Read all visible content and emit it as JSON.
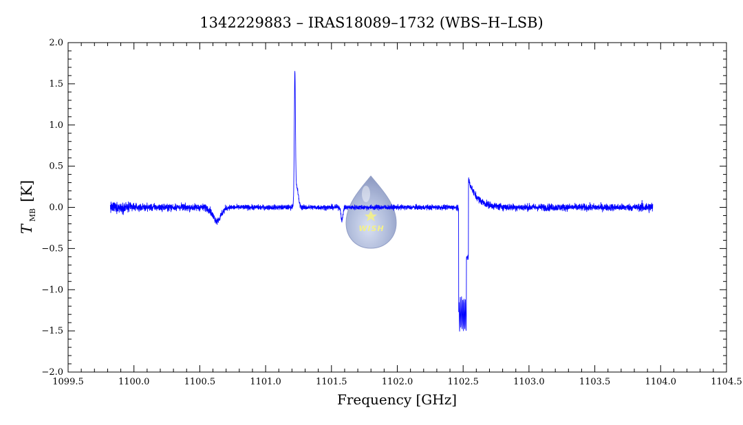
{
  "chart_data": {
    "type": "line",
    "title": "1342229883 – IRAS18089–1732 (WBS–H–LSB)",
    "xlabel": "Frequency [GHz]",
    "ylabel_main": "T",
    "ylabel_sub": "MB",
    "ylabel_unit": "[K]",
    "xlim": [
      1099.5,
      1104.5
    ],
    "ylim": [
      -2.0,
      2.0
    ],
    "x_major_ticks": [
      1099.5,
      1100.0,
      1100.5,
      1101.0,
      1101.5,
      1102.0,
      1102.5,
      1103.0,
      1103.5,
      1104.0,
      1104.5
    ],
    "x_tick_labels": [
      "1099.5",
      "1100.0",
      "1100.5",
      "1101.0",
      "1101.5",
      "1102.0",
      "1102.5",
      "1103.0",
      "1103.5",
      "1104.0",
      "1104.5"
    ],
    "y_major_ticks": [
      -2.0,
      -1.5,
      -1.0,
      -0.5,
      0.0,
      0.5,
      1.0,
      1.5,
      2.0
    ],
    "y_tick_labels": [
      "−2.0",
      "−1.5",
      "−1.0",
      "−0.5",
      "0.0",
      "0.5",
      "1.0",
      "1.5",
      "2.0"
    ],
    "grid": false,
    "series": [
      {
        "color": "#0000ff",
        "x_range": [
          1099.82,
          1103.94
        ],
        "baseline_noise_rms": 0.03,
        "features": [
          {
            "x": 1100.62,
            "y": -0.18
          },
          {
            "x": 1100.65,
            "y": -0.25
          },
          {
            "x": 1101.22,
            "y": 1.58
          },
          {
            "x": 1101.58,
            "y": -0.2
          },
          {
            "x": 1102.475,
            "y": -1.38
          },
          {
            "x": 1102.51,
            "y": -1.43
          },
          {
            "x": 1102.545,
            "y": 0.37
          }
        ]
      }
    ]
  },
  "watermark": {
    "text": "WISH",
    "color": "#a9b6d8"
  }
}
